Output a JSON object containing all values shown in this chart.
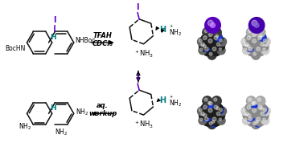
{
  "background_color": "#ffffff",
  "colors": {
    "iodine": "#6600cc",
    "bond": "#111111",
    "teal": "#008080",
    "blue_atom_dark": "#2233bb",
    "blue_atom_bright": "#2244dd",
    "dark_carbon": "#1a1a1a",
    "mid_carbon": "#444444",
    "light_carbon": "#888888",
    "very_light": "#bbbbbb",
    "purple_iodine": "#6600aa",
    "white_highlight": "#ffffff"
  },
  "top_reagents": [
    "TFAH",
    "CDCl₃"
  ],
  "bottom_reagents": [
    "aq.",
    "workup"
  ]
}
